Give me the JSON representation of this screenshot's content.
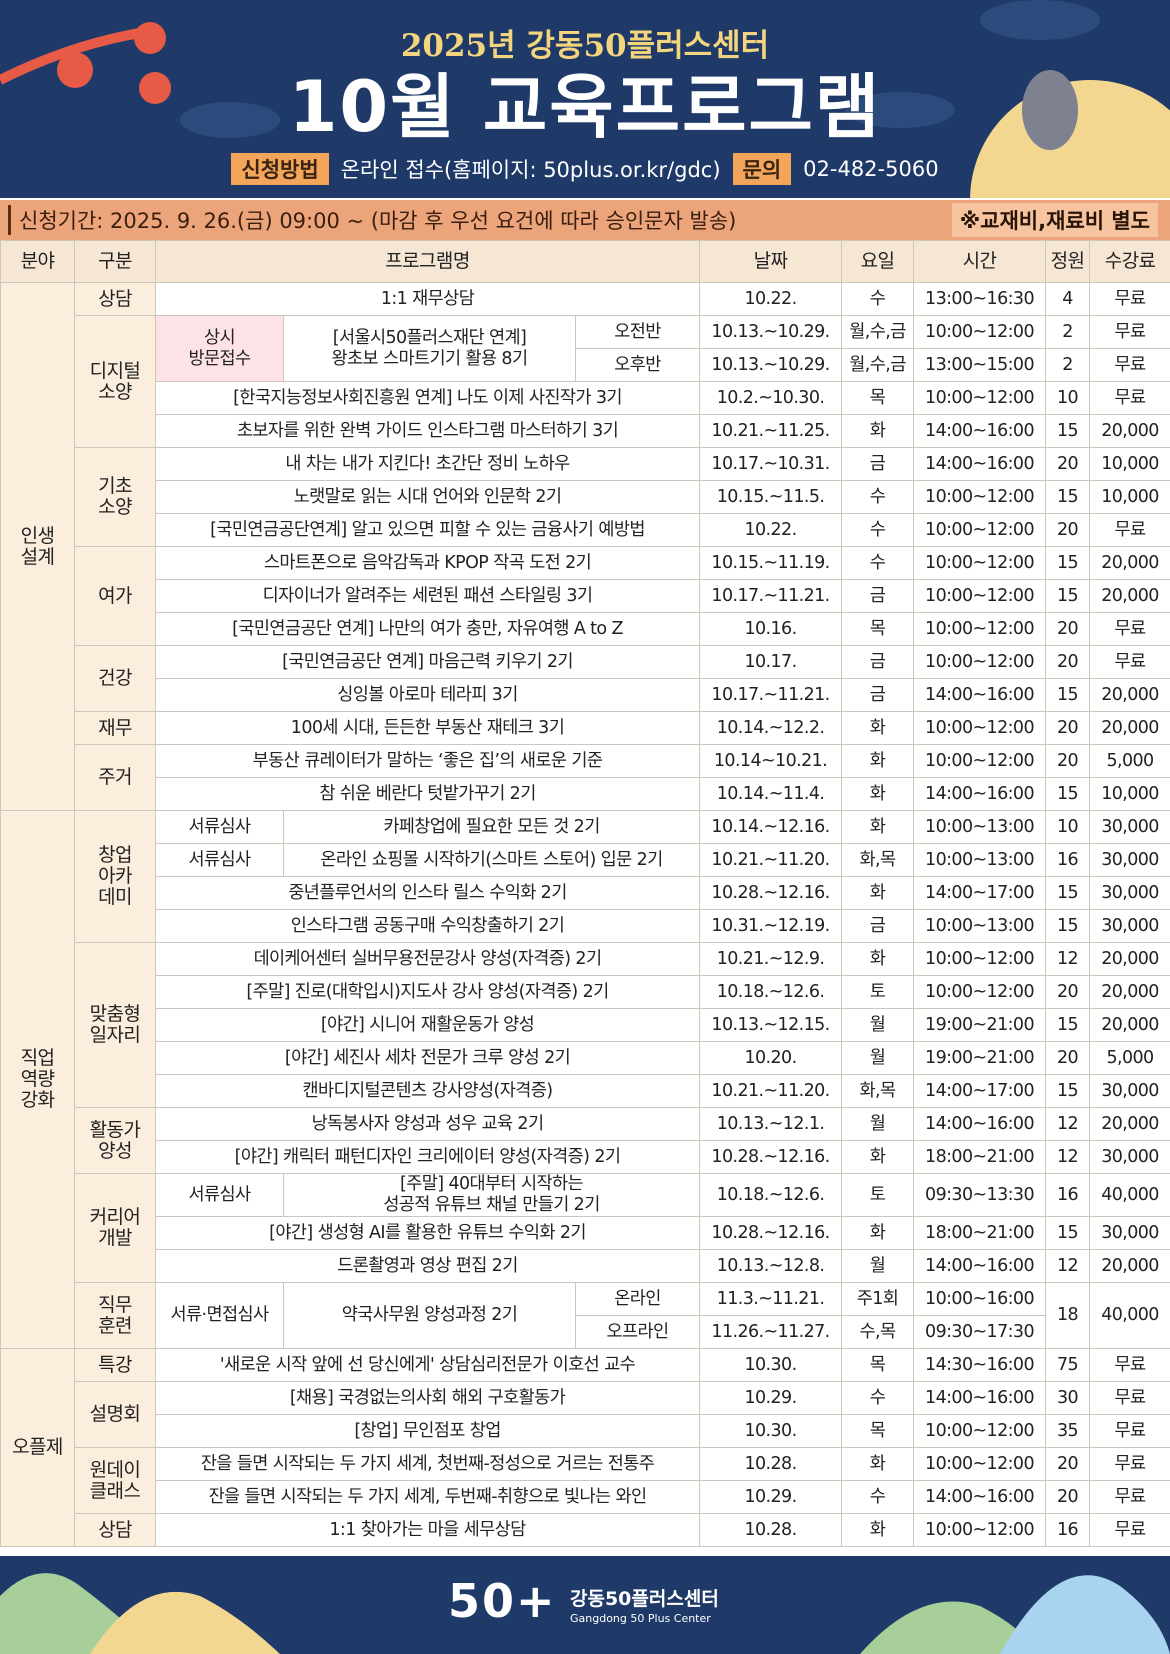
{
  "header": {
    "subtitle": "2025년 강동50플러스센터",
    "title": "10월 교육프로그램",
    "apply_label": "신청방법",
    "apply_text": "온라인 접수(홈페이지: 50plus.or.kr/gdc)",
    "contact_label": "문의",
    "contact_text": "02-482-5060"
  },
  "period": {
    "text": "신청기간: 2025. 9. 26.(금) 09:00 ~ (마감 후 우선 요건에 따라 승인문자 발송)",
    "note": "※교재비,재료비 별도"
  },
  "table": {
    "headers": [
      "분야",
      "구분",
      "프로그램명",
      "날짜",
      "요일",
      "시간",
      "정원",
      "수강료"
    ],
    "sections": [
      {
        "name": "인생\n설계",
        "groups": [
          {
            "name": "상담",
            "programs": [
              {
                "name": "1:1 재무상담",
                "date": "10.22.",
                "day": "수",
                "time": "13:00~16:30",
                "capacity": 4,
                "fee": "무료"
              }
            ]
          },
          {
            "name": "디지털\n소양",
            "programs": [
              {
                "note": "상시\n방문접수",
                "name": "[서울시50플러스재단 연계]\n왕초보 스마트기기 활용 8기",
                "sessions": [
                  {
                    "label": "오전반",
                    "date": "10.13.~10.29.",
                    "day": "월,수,금",
                    "time": "10:00~12:00",
                    "capacity": 2,
                    "fee": "무료"
                  },
                  {
                    "label": "오후반",
                    "date": "10.13.~10.29.",
                    "day": "월,수,금",
                    "time": "13:00~15:00",
                    "capacity": 2,
                    "fee": "무료"
                  }
                ]
              },
              {
                "name": "[한국지능정보사회진흥원 연계] 나도 이제 사진작가 3기",
                "date": "10.2.~10.30.",
                "day": "목",
                "time": "10:00~12:00",
                "capacity": 10,
                "fee": "무료"
              },
              {
                "name": "초보자를 위한 완벽 가이드 인스타그램 마스터하기 3기",
                "date": "10.21.~11.25.",
                "day": "화",
                "time": "14:00~16:00",
                "capacity": 15,
                "fee": "20,000"
              }
            ]
          },
          {
            "name": "기초\n소양",
            "programs": [
              {
                "name": "내 차는 내가 지킨다! 초간단 정비 노하우",
                "date": "10.17.~10.31.",
                "day": "금",
                "time": "14:00~16:00",
                "capacity": 20,
                "fee": "10,000"
              },
              {
                "name": "노랫말로 읽는 시대 언어와 인문학 2기",
                "date": "10.15.~11.5.",
                "day": "수",
                "time": "10:00~12:00",
                "capacity": 15,
                "fee": "10,000"
              },
              {
                "name": "[국민연금공단연계] 알고 있으면 피할 수 있는 금융사기 예방법",
                "date": "10.22.",
                "day": "수",
                "time": "10:00~12:00",
                "capacity": 20,
                "fee": "무료"
              }
            ]
          },
          {
            "name": "여가",
            "programs": [
              {
                "name": "스마트폰으로 음악감독과 KPOP 작곡 도전 2기",
                "date": "10.15.~11.19.",
                "day": "수",
                "time": "10:00~12:00",
                "capacity": 15,
                "fee": "20,000"
              },
              {
                "name": "디자이너가 알려주는 세련된 패션 스타일링 3기",
                "date": "10.17.~11.21.",
                "day": "금",
                "time": "10:00~12:00",
                "capacity": 15,
                "fee": "20,000"
              },
              {
                "name": "[국민연금공단 연계] 나만의 여가 충만, 자유여행 A to Z",
                "date": "10.16.",
                "day": "목",
                "time": "10:00~12:00",
                "capacity": 20,
                "fee": "무료"
              }
            ]
          },
          {
            "name": "건강",
            "programs": [
              {
                "name": "[국민연금공단 연계] 마음근력 키우기 2기",
                "date": "10.17.",
                "day": "금",
                "time": "10:00~12:00",
                "capacity": 20,
                "fee": "무료"
              },
              {
                "name": "싱잉볼 아로마 테라피 3기",
                "date": "10.17.~11.21.",
                "day": "금",
                "time": "14:00~16:00",
                "capacity": 15,
                "fee": "20,000"
              }
            ]
          },
          {
            "name": "재무",
            "programs": [
              {
                "name": "100세 시대, 든든한 부동산 재테크 3기",
                "date": "10.14.~12.2.",
                "day": "화",
                "time": "10:00~12:00",
                "capacity": 20,
                "fee": "20,000"
              }
            ]
          },
          {
            "name": "주거",
            "programs": [
              {
                "name": "부동산 큐레이터가 말하는 ‘좋은 집’의 새로운 기준",
                "date": "10.14~10.21.",
                "day": "화",
                "time": "10:00~12:00",
                "capacity": 20,
                "fee": "5,000"
              },
              {
                "name": "참 쉬운 베란다 텃밭가꾸기 2기",
                "date": "10.14.~11.4.",
                "day": "화",
                "time": "14:00~16:00",
                "capacity": 15,
                "fee": "10,000"
              }
            ]
          }
        ]
      },
      {
        "name": "직업\n역량\n강화",
        "groups": [
          {
            "name": "창업\n아카\n데미",
            "programs": [
              {
                "note": "서류심사",
                "name": "카페창업에 필요한 모든 것 2기",
                "date": "10.14.~12.16.",
                "day": "화",
                "time": "10:00~13:00",
                "capacity": 10,
                "fee": "30,000"
              },
              {
                "note": "서류심사",
                "name": "온라인 쇼핑몰 시작하기(스마트 스토어) 입문 2기",
                "date": "10.21.~11.20.",
                "day": "화,목",
                "time": "10:00~13:00",
                "capacity": 16,
                "fee": "30,000"
              },
              {
                "name": "중년플루언서의 인스타 릴스 수익화 2기",
                "date": "10.28.~12.16.",
                "day": "화",
                "time": "14:00~17:00",
                "capacity": 15,
                "fee": "30,000"
              },
              {
                "name": "인스타그램 공동구매 수익창출하기 2기",
                "date": "10.31.~12.19.",
                "day": "금",
                "time": "10:00~13:00",
                "capacity": 15,
                "fee": "30,000"
              }
            ]
          },
          {
            "name": "맞춤형\n일자리",
            "programs": [
              {
                "name": "데이케어센터 실버무용전문강사 양성(자격증) 2기",
                "date": "10.21.~12.9.",
                "day": "화",
                "time": "10:00~12:00",
                "capacity": 12,
                "fee": "20,000"
              },
              {
                "name": "[주말] 진로(대학입시)지도사 강사 양성(자격증) 2기",
                "date": "10.18.~12.6.",
                "day": "토",
                "time": "10:00~12:00",
                "capacity": 20,
                "fee": "20,000"
              },
              {
                "name": "[야간] 시니어 재활운동가 양성",
                "date": "10.13.~12.15.",
                "day": "월",
                "time": "19:00~21:00",
                "capacity": 15,
                "fee": "20,000"
              },
              {
                "name": "[야간] 세진사 세차 전문가 크루 양성 2기",
                "date": "10.20.",
                "day": "월",
                "time": "19:00~21:00",
                "capacity": 20,
                "fee": "5,000"
              },
              {
                "name": "캔바디지털콘텐츠 강사양성(자격증)",
                "date": "10.21.~11.20.",
                "day": "화,목",
                "time": "14:00~17:00",
                "capacity": 15,
                "fee": "30,000"
              }
            ]
          },
          {
            "name": "활동가\n양성",
            "programs": [
              {
                "name": "낭독봉사자 양성과 성우 교육 2기",
                "date": "10.13.~12.1.",
                "day": "월",
                "time": "14:00~16:00",
                "capacity": 12,
                "fee": "20,000"
              },
              {
                "name": "[야간] 캐릭터 패턴디자인 크리에이터 양성(자격증) 2기",
                "date": "10.28.~12.16.",
                "day": "화",
                "time": "18:00~21:00",
                "capacity": 12,
                "fee": "30,000"
              }
            ]
          },
          {
            "name": "커리어\n개발",
            "programs": [
              {
                "note": "서류심사",
                "name": "[주말] 40대부터 시작하는\n성공적 유튜브 채널 만들기 2기",
                "date": "10.18.~12.6.",
                "day": "토",
                "time": "09:30~13:30",
                "capacity": 16,
                "fee": "40,000"
              },
              {
                "name": "[야간] 생성형 AI를 활용한 유튜브 수익화 2기",
                "date": "10.28.~12.16.",
                "day": "화",
                "time": "18:00~21:00",
                "capacity": 15,
                "fee": "30,000"
              },
              {
                "name": "드론촬영과 영상 편집 2기",
                "date": "10.13.~12.8.",
                "day": "월",
                "time": "14:00~16:00",
                "capacity": 12,
                "fee": "20,000"
              }
            ]
          },
          {
            "name": "직무\n훈련",
            "programs": [
              {
                "note": "서류·면접심사",
                "name": "약국사무원 양성과정 2기",
                "capacity": 18,
                "fee": "40,000",
                "sessions": [
                  {
                    "label": "온라인",
                    "date": "11.3.~11.21.",
                    "day": "주1회",
                    "time": "10:00~16:00"
                  },
                  {
                    "label": "오프라인",
                    "date": "11.26.~11.27.",
                    "day": "수,목",
                    "time": "09:30~17:30"
                  }
                ]
              }
            ]
          }
        ]
      },
      {
        "name": "오플제",
        "groups": [
          {
            "name": "특강",
            "programs": [
              {
                "name": "'새로운 시작 앞에 선 당신에게' 상담심리전문가 이호선 교수",
                "date": "10.30.",
                "day": "목",
                "time": "14:30~16:00",
                "capacity": 75,
                "fee": "무료"
              }
            ]
          },
          {
            "name": "설명회",
            "programs": [
              {
                "name": "[채용] 국경없는의사회 해외 구호활동가",
                "date": "10.29.",
                "day": "수",
                "time": "14:00~16:00",
                "capacity": 30,
                "fee": "무료"
              },
              {
                "name": "[창업] 무인점포 창업",
                "date": "10.30.",
                "day": "목",
                "time": "10:00~12:00",
                "capacity": 35,
                "fee": "무료"
              }
            ]
          },
          {
            "name": "원데이\n클래스",
            "programs": [
              {
                "name": "잔을 들면 시작되는 두 가지 세계, 첫번째-정성으로 거르는 전통주",
                "date": "10.28.",
                "day": "화",
                "time": "10:00~12:00",
                "capacity": 20,
                "fee": "무료"
              },
              {
                "name": "잔을 들면 시작되는 두 가지 세계, 두번째-취향으로 빛나는 와인",
                "date": "10.29.",
                "day": "수",
                "time": "14:00~16:00",
                "capacity": 20,
                "fee": "무료"
              }
            ]
          },
          {
            "name": "상담",
            "programs": [
              {
                "name": "1:1 찾아가는 마을 세무상담",
                "date": "10.28.",
                "day": "화",
                "time": "10:00~12:00",
                "capacity": 16,
                "fee": "무료"
              }
            ]
          }
        ]
      }
    ]
  },
  "footer": {
    "logo": "50+",
    "name": "강동50플러스센터",
    "name_en": "Gangdong 50 Plus Center"
  }
}
